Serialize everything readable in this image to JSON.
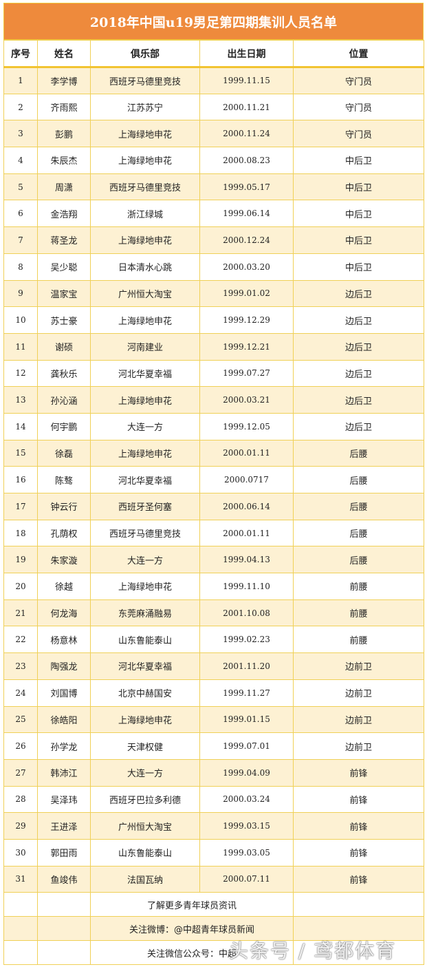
{
  "title": "2018年中国u19男足第四期集训人员名单",
  "columns": [
    "序号",
    "姓名",
    "俱乐部",
    "出生日期",
    "位置"
  ],
  "rows": [
    [
      "1",
      "李学博",
      "西班牙马德里竞技",
      "1999.11.15",
      "守门员"
    ],
    [
      "2",
      "齐雨熙",
      "江苏苏宁",
      "2000.11.21",
      "守门员"
    ],
    [
      "3",
      "彭鹏",
      "上海绿地申花",
      "2000.11.24",
      "守门员"
    ],
    [
      "4",
      "朱辰杰",
      "上海绿地申花",
      "2000.08.23",
      "中后卫"
    ],
    [
      "5",
      "周潇",
      "西班牙马德里竞技",
      "1999.05.17",
      "中后卫"
    ],
    [
      "6",
      "金浩翔",
      "浙江绿城",
      "1999.06.14",
      "中后卫"
    ],
    [
      "7",
      "蒋圣龙",
      "上海绿地申花",
      "2000.12.24",
      "中后卫"
    ],
    [
      "8",
      "吴少聪",
      "日本清水心跳",
      "2000.03.20",
      "中后卫"
    ],
    [
      "9",
      "温家宝",
      "广州恒大淘宝",
      "1999.01.02",
      "边后卫"
    ],
    [
      "10",
      "苏士豪",
      "上海绿地申花",
      "1999.12.29",
      "边后卫"
    ],
    [
      "11",
      "谢硕",
      "河南建业",
      "1999.12.21",
      "边后卫"
    ],
    [
      "12",
      "龚秋乐",
      "河北华夏幸福",
      "1999.07.27",
      "边后卫"
    ],
    [
      "13",
      "孙沁涵",
      "上海绿地申花",
      "2000.03.21",
      "边后卫"
    ],
    [
      "14",
      "何宇鹏",
      "大连一方",
      "1999.12.05",
      "边后卫"
    ],
    [
      "15",
      "徐磊",
      "上海绿地申花",
      "2000.01.11",
      "后腰"
    ],
    [
      "16",
      "陈骜",
      "河北华夏幸福",
      "2000.0717",
      "后腰"
    ],
    [
      "17",
      "钟云行",
      "西班牙圣何塞",
      "2000.06.14",
      "后腰"
    ],
    [
      "18",
      "孔荫权",
      "西班牙马德里竞技",
      "2000.01.11",
      "后腰"
    ],
    [
      "19",
      "朱家漩",
      "大连一方",
      "1999.04.13",
      "后腰"
    ],
    [
      "20",
      "徐越",
      "上海绿地申花",
      "1999.11.10",
      "前腰"
    ],
    [
      "21",
      "何龙海",
      "东莞麻涌融易",
      "2001.10.08",
      "前腰"
    ],
    [
      "22",
      "杨意林",
      "山东鲁能泰山",
      "1999.02.23",
      "前腰"
    ],
    [
      "23",
      "陶强龙",
      "河北华夏幸福",
      "2001.11.20",
      "边前卫"
    ],
    [
      "24",
      "刘国博",
      "北京中赫国安",
      "1999.11.27",
      "边前卫"
    ],
    [
      "25",
      "徐皓阳",
      "上海绿地申花",
      "1999.01.15",
      "边前卫"
    ],
    [
      "26",
      "孙学龙",
      "天津权健",
      "1999.07.01",
      "边前卫"
    ],
    [
      "27",
      "韩沛江",
      "大连一方",
      "1999.04.09",
      "前锋"
    ],
    [
      "28",
      "吴泽玮",
      "西班牙巴拉多利德",
      "2000.03.24",
      "前锋"
    ],
    [
      "29",
      "王进泽",
      "广州恒大淘宝",
      "1999.03.15",
      "前锋"
    ],
    [
      "30",
      "郭田雨",
      "山东鲁能泰山",
      "1999.03.05",
      "前锋"
    ],
    [
      "31",
      "鱼竣伟",
      "法国瓦纳",
      "2000.07.11",
      "前锋"
    ]
  ],
  "footer": [
    "了解更多青年球员资讯",
    "关注微博：@中超青年球员新闻",
    "关注微信公众号：中超"
  ],
  "watermark": "头条号 / 鸢都体育",
  "colors": {
    "title_bg": "#ee8a3c",
    "odd_row_bg": "#fdf1d3",
    "border": "#f0d056"
  }
}
